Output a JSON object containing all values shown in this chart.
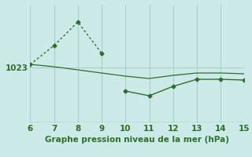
{
  "background_color": "#cceae7",
  "grid_color": "#aacfcc",
  "line_color": "#2d6e2d",
  "text_color": "#2d6e2d",
  "xmin": 6,
  "xmax": 15,
  "ymin": 1016.0,
  "ymax": 1031.0,
  "ytick_value": 1023,
  "line1_x": [
    6,
    7,
    8,
    9
  ],
  "line1_y": [
    1023.4,
    1025.8,
    1028.8,
    1024.8
  ],
  "line2_x": [
    6,
    7,
    8,
    9,
    10,
    11,
    12,
    13,
    14,
    15
  ],
  "line2_y": [
    1023.4,
    1023.1,
    1022.7,
    1022.3,
    1021.9,
    1021.6,
    1022.0,
    1022.3,
    1022.3,
    1022.2
  ],
  "line3_x": [
    10,
    11,
    12,
    13,
    14,
    15
  ],
  "line3_y": [
    1020.0,
    1019.4,
    1020.6,
    1021.5,
    1021.5,
    1021.4
  ],
  "xlabel": "Graphe pression niveau de la mer (hPa)",
  "xticks": [
    6,
    7,
    8,
    9,
    10,
    11,
    12,
    13,
    14,
    15
  ],
  "xlabel_fontsize": 7.5,
  "tick_fontsize": 7.5,
  "ytick_fontsize": 7.5
}
